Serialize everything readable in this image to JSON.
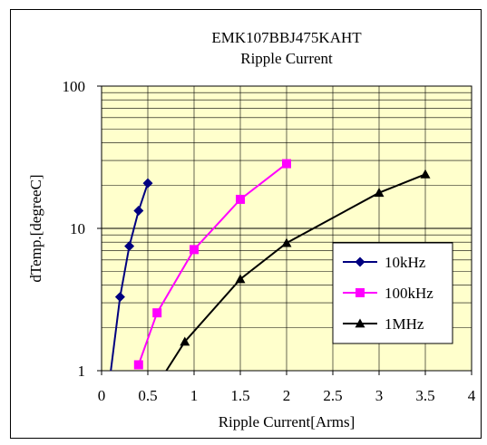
{
  "chart_data": {
    "type": "line",
    "title": "EMK107BBJ475KAHT",
    "subtitle": "Ripple Current",
    "xlabel": "Ripple Current[Arms]",
    "ylabel": "dTemp.[degreeC]",
    "xlim": [
      0,
      4
    ],
    "ylim": [
      1,
      100
    ],
    "yscale": "log",
    "x_ticks": [
      "0",
      "0.5",
      "1",
      "1.5",
      "2",
      "2.5",
      "3",
      "3.5",
      "4"
    ],
    "y_ticks": [
      "1",
      "10",
      "100"
    ],
    "grid": true,
    "legend_position": "right",
    "plot_background": "#ffffcc",
    "series": [
      {
        "name": "10kHz",
        "color": "#000080",
        "marker": "diamond",
        "x": [
          0.1,
          0.2,
          0.3,
          0.4,
          0.5
        ],
        "y": [
          1.0,
          3.3,
          7.5,
          13.3,
          20.8
        ],
        "marker_points": [
          1,
          2,
          3,
          4
        ]
      },
      {
        "name": "100kHz",
        "color": "#ff00ff",
        "marker": "square",
        "x": [
          0.4,
          0.6,
          1.0,
          1.5,
          2.0
        ],
        "y": [
          1.1,
          2.55,
          7.1,
          16.0,
          28.5
        ],
        "marker_points": [
          0,
          1,
          2,
          3,
          4
        ]
      },
      {
        "name": "1MHz",
        "color": "#000000",
        "marker": "triangle",
        "x": [
          0.7,
          0.9,
          1.5,
          2.0,
          3.0,
          3.5
        ],
        "y": [
          1.0,
          1.6,
          4.4,
          7.9,
          17.8,
          24.0
        ],
        "marker_points": [
          1,
          2,
          3,
          4,
          5
        ]
      }
    ]
  }
}
